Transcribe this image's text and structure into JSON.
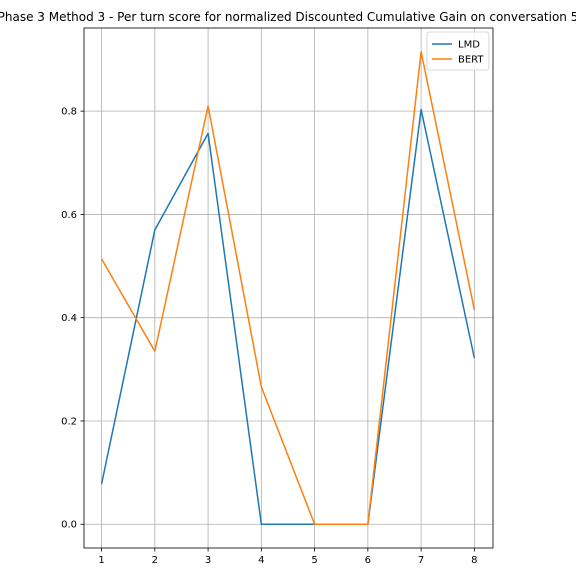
{
  "chart_data": {
    "type": "line",
    "title": "Phase 3 Method 3 - Per turn score for normalized Discounted Cumulative Gain on conversation 5",
    "xlabel": "",
    "ylabel": "",
    "x": [
      1,
      2,
      3,
      4,
      5,
      6,
      7,
      8
    ],
    "series": [
      {
        "name": "LMD",
        "color": "#1f77b4",
        "values": [
          0.078,
          0.57,
          0.757,
          0.0,
          0.0,
          0.0,
          0.803,
          0.322
        ]
      },
      {
        "name": "BERT",
        "color": "#ff7f0e",
        "values": [
          0.514,
          0.335,
          0.81,
          0.266,
          0.0,
          0.0,
          0.915,
          0.415
        ]
      }
    ],
    "xticks": [
      "1",
      "2",
      "3",
      "4",
      "5",
      "6",
      "7",
      "8"
    ],
    "yticks": [
      "0.0",
      "0.2",
      "0.4",
      "0.6",
      "0.8"
    ],
    "xlim": [
      0.67,
      8.35
    ],
    "ylim": [
      -0.046,
      0.961
    ],
    "grid": true,
    "legend_position": "top-right"
  }
}
